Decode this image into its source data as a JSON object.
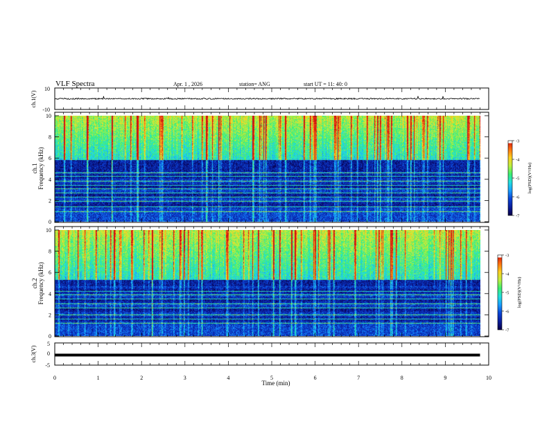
{
  "header": {
    "title": "VLF Spectra",
    "date": "Apr. 1 , 2026",
    "station": "station= ANG",
    "start": "start UT = 11: 40: 0"
  },
  "colors": {
    "ink": "#000000",
    "colormap": [
      "#08004a",
      "#0a1f9e",
      "#0b45d8",
      "#1aa0ff",
      "#22e0e0",
      "#3cf070",
      "#bff040",
      "#ffd020",
      "#ff7010",
      "#d01010",
      "#ffffff"
    ]
  },
  "chart_data": [
    {
      "type": "line",
      "name": "ch1-waveform",
      "ylabel": "ch.1(V)",
      "ylim": [
        -10,
        10
      ],
      "yticks": [
        "10",
        "-10"
      ],
      "baseline": 0,
      "noise_amplitude": 0.6
    },
    {
      "type": "heatmap",
      "name": "ch1-spectrogram",
      "ylabel_line1": "ch.1",
      "ylabel_line2": "Frequency (kHz)",
      "ylim": [
        0,
        10
      ],
      "yticks": [
        "0",
        "2",
        "4",
        "6",
        "8",
        "10"
      ],
      "colorbar": {
        "label": "log(PSD)(V²/Hz)",
        "ticks": [
          "-3",
          "-4",
          "-5",
          "-6",
          "-7"
        ],
        "range": [
          -7,
          -3
        ]
      },
      "noise_floor_kHz": 5.8,
      "tone_lines_kHz": [
        0.9,
        1.4,
        1.9,
        2.3,
        2.7,
        3.1,
        3.4,
        3.8,
        4.3,
        4.6
      ],
      "seed": 11
    },
    {
      "type": "heatmap",
      "name": "ch2-spectrogram",
      "ylabel_line1": "ch.2",
      "ylabel_line2": "Frequency (kHz)",
      "ylim": [
        0,
        10
      ],
      "yticks": [
        "0",
        "2",
        "4",
        "6",
        "8",
        "10"
      ],
      "colorbar": {
        "label": "log(PSD)(V²/Hz)",
        "ticks": [
          "-3",
          "-4",
          "-5",
          "-6",
          "-7"
        ],
        "range": [
          -7,
          -3
        ]
      },
      "noise_floor_kHz": 5.3,
      "tone_lines_kHz": [
        1.2,
        1.6,
        2.0,
        2.6,
        3.0,
        3.5,
        3.9,
        4.2
      ],
      "seed": 29
    },
    {
      "type": "line",
      "name": "ch3-waveform",
      "ylabel": "ch.3(V)",
      "ylim": [
        -5,
        5
      ],
      "yticks": [
        "5",
        "0",
        "-5"
      ],
      "baseline": -0.5,
      "noise_amplitude": 0.0
    }
  ],
  "x_axis": {
    "label": "Time (min)",
    "range": [
      0,
      10
    ],
    "ticks": [
      "0",
      "1",
      "2",
      "3",
      "4",
      "5",
      "6",
      "7",
      "8",
      "9",
      "10"
    ],
    "data_end_min": 9.8
  }
}
